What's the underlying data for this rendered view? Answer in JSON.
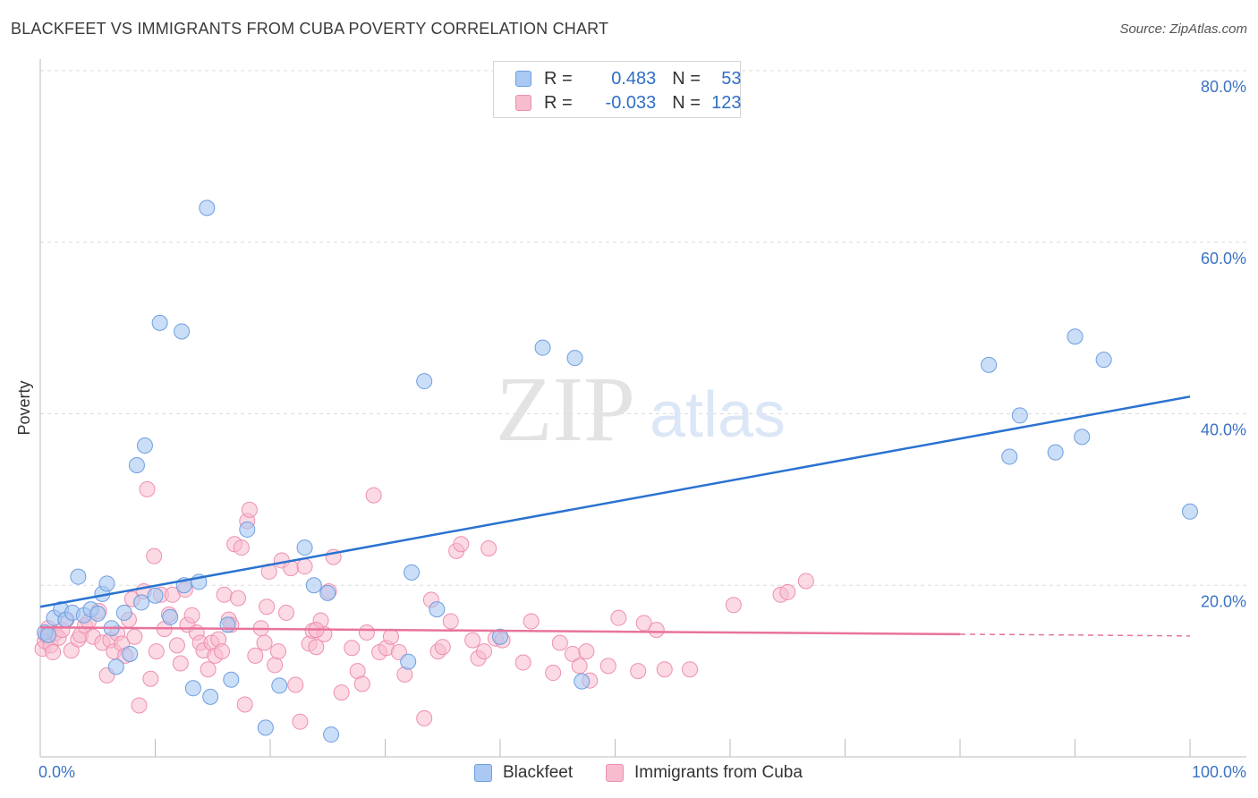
{
  "header": {
    "title": "BLACKFEET VS IMMIGRANTS FROM CUBA POVERTY CORRELATION CHART",
    "source": "Source: ZipAtlas.com"
  },
  "watermark": {
    "zip": "ZIP",
    "atlas": "atlas"
  },
  "colors": {
    "blackfeet_fill": "#a9c8f2",
    "blackfeet_stroke": "#6d9ee0",
    "blackfeet_line": "#2a72d0",
    "cuba_fill": "#f7bccd",
    "cuba_stroke": "#ee8faf",
    "cuba_line": "#e8739c",
    "tick_text": "#3b73c4"
  },
  "legend": {
    "rows": [
      {
        "r_label": "R = ",
        "r_value": "0.483",
        "n_label": "N = ",
        "n_value": "53"
      },
      {
        "r_label": "R = ",
        "r_value": "-0.033",
        "n_label": "N = ",
        "n_value": "123"
      }
    ]
  },
  "chart_data": {
    "type": "scatter",
    "title": "BLACKFEET VS IMMIGRANTS FROM CUBA POVERTY CORRELATION CHART",
    "xlabel": "",
    "ylabel": "Poverty",
    "xlim": [
      0,
      100
    ],
    "ylim": [
      0,
      80
    ],
    "x_tick_labels": [
      "0.0%",
      "100.0%"
    ],
    "y_ticks": [
      20,
      40,
      60,
      80
    ],
    "y_tick_labels": [
      "20.0%",
      "40.0%",
      "60.0%",
      "80.0%"
    ],
    "grid": true,
    "legend_position": "top-center",
    "series": [
      {
        "name": "Blackfeet",
        "trend": {
          "x": [
            0,
            100
          ],
          "y": [
            17.5,
            42.0
          ]
        },
        "points": [
          [
            0.4,
            14.5
          ],
          [
            0.7,
            14.2
          ],
          [
            1.2,
            16.2
          ],
          [
            1.8,
            17.2
          ],
          [
            2.2,
            16.0
          ],
          [
            2.8,
            16.8
          ],
          [
            3.3,
            21.0
          ],
          [
            3.8,
            16.5
          ],
          [
            4.4,
            17.2
          ],
          [
            5.0,
            16.7
          ],
          [
            5.4,
            19.0
          ],
          [
            5.8,
            20.2
          ],
          [
            6.2,
            15.0
          ],
          [
            6.6,
            10.5
          ],
          [
            7.3,
            16.8
          ],
          [
            7.8,
            12.0
          ],
          [
            8.4,
            34.0
          ],
          [
            8.8,
            18.0
          ],
          [
            9.1,
            36.3
          ],
          [
            10.0,
            18.8
          ],
          [
            10.4,
            50.6
          ],
          [
            11.3,
            16.3
          ],
          [
            12.3,
            49.6
          ],
          [
            12.5,
            20.0
          ],
          [
            13.3,
            8.0
          ],
          [
            13.8,
            20.4
          ],
          [
            14.5,
            64.0
          ],
          [
            14.8,
            7.0
          ],
          [
            16.3,
            15.4
          ],
          [
            16.6,
            9.0
          ],
          [
            18.0,
            26.5
          ],
          [
            19.6,
            3.4
          ],
          [
            20.8,
            8.3
          ],
          [
            23.0,
            24.4
          ],
          [
            23.8,
            20.0
          ],
          [
            25.0,
            19.1
          ],
          [
            25.3,
            2.6
          ],
          [
            32.0,
            11.1
          ],
          [
            32.3,
            21.5
          ],
          [
            33.4,
            43.8
          ],
          [
            34.5,
            17.2
          ],
          [
            40.0,
            14.0
          ],
          [
            43.7,
            47.7
          ],
          [
            46.5,
            46.5
          ],
          [
            47.1,
            8.8
          ],
          [
            82.5,
            45.7
          ],
          [
            84.3,
            35.0
          ],
          [
            85.2,
            39.8
          ],
          [
            88.3,
            35.5
          ],
          [
            90.0,
            49.0
          ],
          [
            90.6,
            37.3
          ],
          [
            92.5,
            46.3
          ],
          [
            100.0,
            28.6
          ]
        ]
      },
      {
        "name": "Immigrants from Cuba",
        "trend": {
          "x": [
            0,
            80
          ],
          "y": [
            15.1,
            14.3
          ]
        },
        "trend_dashed": {
          "x": [
            80,
            100
          ],
          "y": [
            14.3,
            14.1
          ]
        },
        "points": [
          [
            0.2,
            12.6
          ],
          [
            0.4,
            13.5
          ],
          [
            0.5,
            14.2
          ],
          [
            0.7,
            15.0
          ],
          [
            0.9,
            13.0
          ],
          [
            1.1,
            12.2
          ],
          [
            1.3,
            14.4
          ],
          [
            1.6,
            13.9
          ],
          [
            1.9,
            14.8
          ],
          [
            2.3,
            16.0
          ],
          [
            2.7,
            12.4
          ],
          [
            3.3,
            13.7
          ],
          [
            3.5,
            14.2
          ],
          [
            3.9,
            15.3
          ],
          [
            4.2,
            15.8
          ],
          [
            4.6,
            14.0
          ],
          [
            5.1,
            17.0
          ],
          [
            5.4,
            13.3
          ],
          [
            5.8,
            9.5
          ],
          [
            6.1,
            13.6
          ],
          [
            6.4,
            12.3
          ],
          [
            6.7,
            14.4
          ],
          [
            7.1,
            13.2
          ],
          [
            7.4,
            11.8
          ],
          [
            7.7,
            16.0
          ],
          [
            8.0,
            18.4
          ],
          [
            8.2,
            14.0
          ],
          [
            8.6,
            6.0
          ],
          [
            9.0,
            19.3
          ],
          [
            9.3,
            31.2
          ],
          [
            9.6,
            9.1
          ],
          [
            9.9,
            23.4
          ],
          [
            10.1,
            12.3
          ],
          [
            10.5,
            18.9
          ],
          [
            10.8,
            14.9
          ],
          [
            11.2,
            16.6
          ],
          [
            11.5,
            18.9
          ],
          [
            11.9,
            13.0
          ],
          [
            12.2,
            10.9
          ],
          [
            12.6,
            19.5
          ],
          [
            12.8,
            15.4
          ],
          [
            13.2,
            16.5
          ],
          [
            13.6,
            14.5
          ],
          [
            13.9,
            13.3
          ],
          [
            14.2,
            12.4
          ],
          [
            14.6,
            10.2
          ],
          [
            14.9,
            13.3
          ],
          [
            15.2,
            11.8
          ],
          [
            15.5,
            13.7
          ],
          [
            15.8,
            12.3
          ],
          [
            16.0,
            18.9
          ],
          [
            16.4,
            16.0
          ],
          [
            16.6,
            15.4
          ],
          [
            16.9,
            24.8
          ],
          [
            17.2,
            18.5
          ],
          [
            17.5,
            24.4
          ],
          [
            17.8,
            6.1
          ],
          [
            18.0,
            27.5
          ],
          [
            18.2,
            28.8
          ],
          [
            18.7,
            11.8
          ],
          [
            19.2,
            15.0
          ],
          [
            19.5,
            13.3
          ],
          [
            19.7,
            17.5
          ],
          [
            19.9,
            21.6
          ],
          [
            20.4,
            10.7
          ],
          [
            20.7,
            12.3
          ],
          [
            21.0,
            22.9
          ],
          [
            21.4,
            16.8
          ],
          [
            21.8,
            22.0
          ],
          [
            22.2,
            8.4
          ],
          [
            22.6,
            4.1
          ],
          [
            23.0,
            22.2
          ],
          [
            23.4,
            13.2
          ],
          [
            23.7,
            14.7
          ],
          [
            24.0,
            12.8
          ],
          [
            24.4,
            15.9
          ],
          [
            24.7,
            14.3
          ],
          [
            25.1,
            19.3
          ],
          [
            25.5,
            23.3
          ],
          [
            26.2,
            7.5
          ],
          [
            27.1,
            12.7
          ],
          [
            27.6,
            10.0
          ],
          [
            28.0,
            8.5
          ],
          [
            28.4,
            14.5
          ],
          [
            29.0,
            30.5
          ],
          [
            29.5,
            12.2
          ],
          [
            30.1,
            12.7
          ],
          [
            30.5,
            14.0
          ],
          [
            31.2,
            12.2
          ],
          [
            31.7,
            9.6
          ],
          [
            33.4,
            4.5
          ],
          [
            34.0,
            18.3
          ],
          [
            34.6,
            12.3
          ],
          [
            35.0,
            12.8
          ],
          [
            35.7,
            15.8
          ],
          [
            36.2,
            24.0
          ],
          [
            36.6,
            24.8
          ],
          [
            37.6,
            13.6
          ],
          [
            38.1,
            11.5
          ],
          [
            38.6,
            12.3
          ],
          [
            39.0,
            24.3
          ],
          [
            39.6,
            13.8
          ],
          [
            40.2,
            13.6
          ],
          [
            42.0,
            11.0
          ],
          [
            42.7,
            15.8
          ],
          [
            44.6,
            9.8
          ],
          [
            45.2,
            13.3
          ],
          [
            46.3,
            12.0
          ],
          [
            46.9,
            10.6
          ],
          [
            47.5,
            12.3
          ],
          [
            47.8,
            8.9
          ],
          [
            49.4,
            10.6
          ],
          [
            50.3,
            16.2
          ],
          [
            52.0,
            10.0
          ],
          [
            52.5,
            15.6
          ],
          [
            53.6,
            14.8
          ],
          [
            54.3,
            10.2
          ],
          [
            56.5,
            10.2
          ],
          [
            60.3,
            17.7
          ],
          [
            64.4,
            18.9
          ],
          [
            65.0,
            19.2
          ],
          [
            66.6,
            20.5
          ],
          [
            24.0,
            14.8
          ]
        ]
      }
    ]
  }
}
